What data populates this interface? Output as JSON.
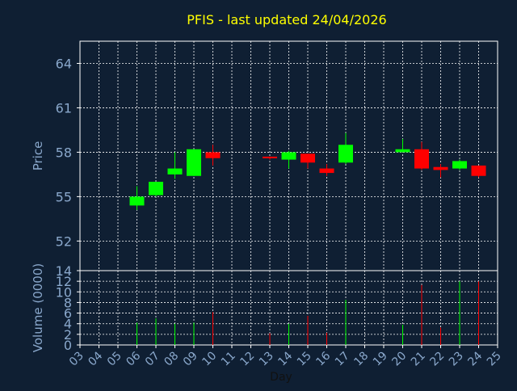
{
  "chart_data": {
    "type": "candlestick",
    "title": "PFIS - last updated 24/04/2026",
    "xlabel": "Day",
    "price_panel": {
      "ylabel": "Price",
      "ylim": [
        50,
        65.5
      ],
      "yticks": [
        52,
        55,
        58,
        61,
        64
      ]
    },
    "volume_panel": {
      "ylabel": "Volume (0000)",
      "ylim": [
        0,
        14
      ],
      "yticks": [
        0,
        2,
        4,
        6,
        8,
        10,
        12,
        14
      ]
    },
    "xlim": [
      3,
      25
    ],
    "xticks": [
      "03",
      "04",
      "05",
      "06",
      "07",
      "08",
      "09",
      "10",
      "11",
      "12",
      "13",
      "14",
      "15",
      "16",
      "17",
      "18",
      "19",
      "20",
      "21",
      "22",
      "23",
      "24",
      "25"
    ],
    "grid": true,
    "colors": {
      "background": "#0f1f33",
      "up": "#00ff00",
      "down": "#ff0000",
      "grid": "#ffffff",
      "axis_text": "#8aa8cc",
      "title": "#ffff00"
    },
    "candles": [
      {
        "day": 6,
        "open": 54.4,
        "high": 55.7,
        "low": 54.1,
        "close": 55.0,
        "volume": 4.2
      },
      {
        "day": 7,
        "open": 55.1,
        "high": 56.0,
        "low": 55.0,
        "close": 56.0,
        "volume": 5.0
      },
      {
        "day": 8,
        "open": 56.5,
        "high": 58.0,
        "low": 56.2,
        "close": 56.9,
        "volume": 4.0
      },
      {
        "day": 9,
        "open": 56.4,
        "high": 58.2,
        "low": 56.4,
        "close": 58.2,
        "volume": 4.2
      },
      {
        "day": 10,
        "open": 58.0,
        "high": 58.5,
        "low": 57.1,
        "close": 57.6,
        "volume": 6.2
      },
      {
        "day": 13,
        "open": 57.7,
        "high": 57.7,
        "low": 57.5,
        "close": 57.6,
        "volume": 2.2
      },
      {
        "day": 14,
        "open": 57.5,
        "high": 58.1,
        "low": 56.9,
        "close": 58.0,
        "volume": 4.0
      },
      {
        "day": 15,
        "open": 57.9,
        "high": 57.9,
        "low": 56.9,
        "close": 57.3,
        "volume": 5.5
      },
      {
        "day": 16,
        "open": 56.9,
        "high": 57.2,
        "low": 56.4,
        "close": 56.6,
        "volume": 2.3
      },
      {
        "day": 17,
        "open": 57.3,
        "high": 59.3,
        "low": 57.2,
        "close": 58.5,
        "volume": 8.5
      },
      {
        "day": 20,
        "open": 58.0,
        "high": 58.9,
        "low": 58.0,
        "close": 58.2,
        "volume": 3.8
      },
      {
        "day": 21,
        "open": 58.2,
        "high": 58.7,
        "low": 56.8,
        "close": 56.9,
        "volume": 11.3
      },
      {
        "day": 22,
        "open": 57.0,
        "high": 57.2,
        "low": 56.3,
        "close": 56.8,
        "volume": 3.3
      },
      {
        "day": 23,
        "open": 56.9,
        "high": 57.5,
        "low": 56.8,
        "close": 57.4,
        "volume": 12.0
      },
      {
        "day": 24,
        "open": 57.1,
        "high": 57.1,
        "low": 56.3,
        "close": 56.4,
        "volume": 12.0
      }
    ]
  }
}
